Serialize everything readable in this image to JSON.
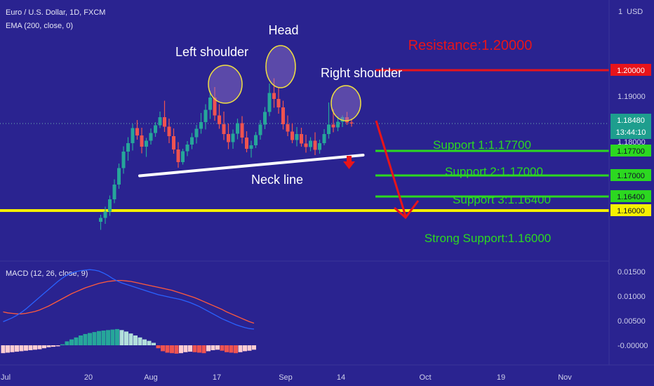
{
  "header": {
    "title": "Euro / U.S. Dollar, 1D, FXCM",
    "indicator": "EMA (200, close, 0)",
    "currency": "USD",
    "menu_index": "1"
  },
  "macd_header": {
    "label": "MACD (12, 26, close, 9)"
  },
  "colors": {
    "background": "#2a2390",
    "up_candle": "#26a69a",
    "down_candle": "#ef5350",
    "resistance": "#e8141a",
    "support": "#2cd820",
    "strong_support": "#f6f000",
    "neckline": "#ffffff",
    "shoulder_circle": "#f0e040",
    "arrow": "#e8141a",
    "macd_line": "#2962ff",
    "signal_line": "#ff5a3c",
    "text": "#ffffff"
  },
  "chart_data": [
    {
      "type": "candlestick",
      "title": "Euro / U.S. Dollar, 1D, FXCM",
      "x_ticks": [
        "Jul",
        "20",
        "Aug",
        "17",
        "Sep",
        "14",
        "Oct",
        "19",
        "Nov"
      ],
      "y_ticks": [
        "1.19000",
        "1.18000"
      ],
      "current_price": "1.18480",
      "countdown": "13:44:10",
      "levels": [
        {
          "label": "Resistance:1.20000",
          "value": 1.2,
          "tag": "1.20000",
          "role": "resistance"
        },
        {
          "label": "Support 1:1.17700",
          "value": 1.177,
          "tag": "1.17700",
          "role": "support"
        },
        {
          "label": "Support 2:1.17000",
          "value": 1.17,
          "tag": "1.17000",
          "role": "support"
        },
        {
          "label": "Support 3:1.16400",
          "value": 1.164,
          "tag": "1.16400",
          "role": "support"
        },
        {
          "label": "Strong Support:1.16000",
          "value": 1.16,
          "tag": "1.16000",
          "role": "strong_support"
        }
      ],
      "annotations": [
        {
          "text": "Left shoulder",
          "role": "left_shoulder"
        },
        {
          "text": "Head",
          "role": "head"
        },
        {
          "text": "Right shoulder",
          "role": "right_shoulder"
        },
        {
          "text": "Neck line",
          "role": "neckline"
        }
      ],
      "neckline": {
        "from": [
          9,
          1.1739
        ],
        "to": [
          56,
          1.1786
        ]
      },
      "candles": [
        [
          0,
          1.1568,
          1.1588,
          1.1545,
          1.1579
        ],
        [
          1,
          1.1579,
          1.1611,
          1.1562,
          1.1597
        ],
        [
          2,
          1.1597,
          1.1643,
          1.1585,
          1.1632
        ],
        [
          3,
          1.1632,
          1.1689,
          1.1621,
          1.1674
        ],
        [
          4,
          1.1674,
          1.1734,
          1.1662,
          1.1721
        ],
        [
          5,
          1.1721,
          1.1783,
          1.1705,
          1.1768
        ],
        [
          6,
          1.1768,
          1.1809,
          1.1742,
          1.1792
        ],
        [
          7,
          1.1792,
          1.1847,
          1.1771,
          1.1835
        ],
        [
          8,
          1.1835,
          1.1858,
          1.1802,
          1.1814
        ],
        [
          9,
          1.1814,
          1.1836,
          1.1763,
          1.1782
        ],
        [
          10,
          1.1782,
          1.1807,
          1.1753,
          1.1799
        ],
        [
          11,
          1.1799,
          1.1834,
          1.1788,
          1.1821
        ],
        [
          12,
          1.1821,
          1.1852,
          1.181,
          1.1843
        ],
        [
          13,
          1.1843,
          1.1882,
          1.1835,
          1.1866
        ],
        [
          14,
          1.1866,
          1.1913,
          1.1824,
          1.1839
        ],
        [
          15,
          1.1839,
          1.1862,
          1.1792,
          1.1812
        ],
        [
          16,
          1.1812,
          1.1834,
          1.1762,
          1.1774
        ],
        [
          17,
          1.1774,
          1.1795,
          1.1722,
          1.1738
        ],
        [
          18,
          1.1738,
          1.1776,
          1.1731,
          1.1769
        ],
        [
          19,
          1.1769,
          1.1798,
          1.1755,
          1.1788
        ],
        [
          20,
          1.1788,
          1.1821,
          1.1775,
          1.1809
        ],
        [
          21,
          1.1809,
          1.1844,
          1.1791,
          1.1833
        ],
        [
          22,
          1.1833,
          1.1878,
          1.1819,
          1.1852
        ],
        [
          23,
          1.1852,
          1.1903,
          1.1831,
          1.1887
        ],
        [
          24,
          1.1887,
          1.1942,
          1.1861,
          1.1922
        ],
        [
          25,
          1.1922,
          1.1952,
          1.1856,
          1.1871
        ],
        [
          26,
          1.1871,
          1.1903,
          1.1833,
          1.1846
        ],
        [
          27,
          1.1846,
          1.1882,
          1.1801,
          1.1818
        ],
        [
          28,
          1.1818,
          1.1848,
          1.1775,
          1.1795
        ],
        [
          29,
          1.1795,
          1.1831,
          1.1776,
          1.1819
        ],
        [
          30,
          1.1819,
          1.1862,
          1.1803,
          1.1849
        ],
        [
          31,
          1.1849,
          1.1869,
          1.1791,
          1.1808
        ],
        [
          32,
          1.1808,
          1.1826,
          1.1766,
          1.1776
        ],
        [
          33,
          1.1776,
          1.1799,
          1.1751,
          1.1786
        ],
        [
          34,
          1.1786,
          1.1824,
          1.1778,
          1.1815
        ],
        [
          35,
          1.1815,
          1.1858,
          1.1802,
          1.1845
        ],
        [
          36,
          1.1845,
          1.1895,
          1.1832,
          1.1881
        ],
        [
          37,
          1.1881,
          1.1962,
          1.1869,
          1.1935
        ],
        [
          38,
          1.1935,
          1.1977,
          1.1893,
          1.1918
        ],
        [
          39,
          1.1918,
          1.1949,
          1.1876,
          1.1894
        ],
        [
          40,
          1.1894,
          1.1913,
          1.1831,
          1.1846
        ],
        [
          41,
          1.1846,
          1.1871,
          1.1812,
          1.1825
        ],
        [
          42,
          1.1825,
          1.1849,
          1.1792,
          1.1801
        ],
        [
          43,
          1.1801,
          1.1838,
          1.1783,
          1.1818
        ],
        [
          44,
          1.1818,
          1.1836,
          1.1782,
          1.1791
        ],
        [
          45,
          1.1791,
          1.1816,
          1.1765,
          1.1781
        ],
        [
          46,
          1.1781,
          1.1809,
          1.1769,
          1.1799
        ],
        [
          47,
          1.1799,
          1.1823,
          1.1758,
          1.1773
        ],
        [
          48,
          1.1773,
          1.1802,
          1.1762,
          1.1792
        ],
        [
          49,
          1.1792,
          1.1832,
          1.1786,
          1.1818
        ],
        [
          50,
          1.1818,
          1.1908,
          1.1805,
          1.1845
        ],
        [
          51,
          1.1845,
          1.1889,
          1.1823,
          1.1837
        ],
        [
          52,
          1.1837,
          1.1868,
          1.1826,
          1.1853
        ],
        [
          53,
          1.1853,
          1.1871,
          1.1838,
          1.1866
        ],
        [
          54,
          1.1866,
          1.1881,
          1.1844,
          1.1851
        ],
        [
          55,
          1.1851,
          1.1862,
          1.1839,
          1.1848
        ]
      ]
    },
    {
      "type": "line",
      "title": "MACD (12, 26, close, 9)",
      "y_ticks": [
        "0.01500",
        "0.01000",
        "0.00500",
        "-0.00000"
      ],
      "series": [
        {
          "name": "MACD",
          "values": [
            0.0048,
            0.0052,
            0.0056,
            0.0061,
            0.0067,
            0.0074,
            0.0082,
            0.009,
            0.0098,
            0.0106,
            0.0114,
            0.0122,
            0.013,
            0.0137,
            0.0143,
            0.0147,
            0.015,
            0.0152,
            0.0153,
            0.0154,
            0.0153,
            0.0151,
            0.0147,
            0.0142,
            0.0136,
            0.0131,
            0.0127,
            0.0124,
            0.0121,
            0.0118,
            0.0115,
            0.0112,
            0.0109,
            0.0106,
            0.0103,
            0.0101,
            0.0099,
            0.0097,
            0.0095,
            0.0093,
            0.009,
            0.0087,
            0.0083,
            0.0079,
            0.0074,
            0.0069,
            0.0064,
            0.0059,
            0.0054,
            0.005,
            0.0046,
            0.0042,
            0.0039,
            0.0036,
            0.0034,
            0.0033
          ]
        },
        {
          "name": "Signal",
          "values": [
            0.0068,
            0.0066,
            0.0065,
            0.0064,
            0.0064,
            0.0065,
            0.0067,
            0.0069,
            0.0072,
            0.0076,
            0.008,
            0.0085,
            0.009,
            0.0095,
            0.01,
            0.0105,
            0.0109,
            0.0113,
            0.0117,
            0.012,
            0.0123,
            0.0126,
            0.0128,
            0.013,
            0.0131,
            0.0132,
            0.0132,
            0.0131,
            0.013,
            0.0128,
            0.0126,
            0.0124,
            0.0122,
            0.012,
            0.0118,
            0.0116,
            0.0114,
            0.0112,
            0.0109,
            0.0106,
            0.0103,
            0.01,
            0.0097,
            0.0093,
            0.0089,
            0.0085,
            0.0081,
            0.0077,
            0.0073,
            0.0068,
            0.0064,
            0.006,
            0.0056,
            0.0052,
            0.0048,
            0.0045
          ]
        },
        {
          "name": "Histogram",
          "values": [
            -0.0016,
            -0.0015,
            -0.0014,
            -0.0013,
            -0.0012,
            -0.0011,
            -0.001,
            -0.0009,
            -0.0008,
            -0.0006,
            -0.0004,
            -0.0003,
            -0.0002,
            0.0002,
            0.0008,
            0.0012,
            0.0016,
            0.002,
            0.0023,
            0.0025,
            0.0027,
            0.0029,
            0.003,
            0.0031,
            0.0032,
            0.0033,
            0.0031,
            0.0028,
            0.0024,
            0.002,
            0.0016,
            0.0012,
            0.0009,
            0.0005,
            -0.0006,
            -0.0012,
            -0.0015,
            -0.0016,
            -0.0017,
            -0.0016,
            -0.0014,
            -0.0013,
            -0.0014,
            -0.0015,
            -0.0016,
            -0.0012,
            -0.001,
            -0.0009,
            -0.0011,
            -0.0014,
            -0.0015,
            -0.0016,
            -0.0014,
            -0.0012,
            -0.0011,
            -0.0009
          ]
        }
      ]
    }
  ]
}
